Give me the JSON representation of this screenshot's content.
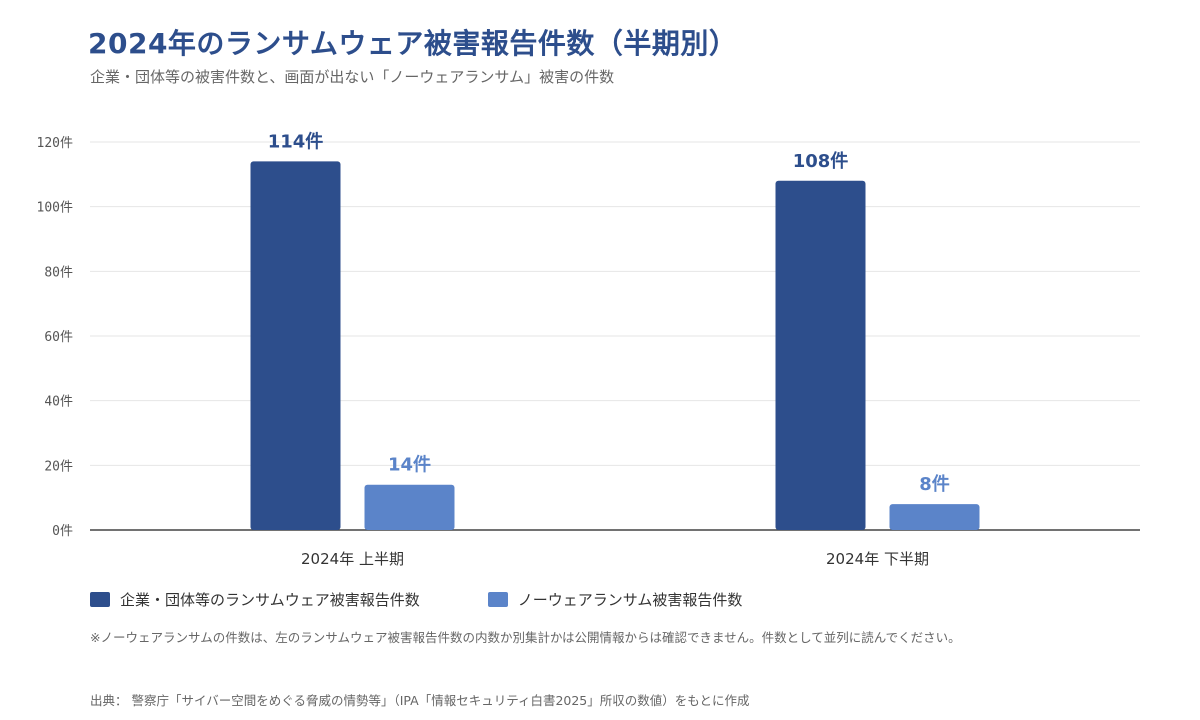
{
  "header": {
    "title": "2024年のランサムウェア被害報告件数（半期別）",
    "subtitle": "企業・団体等の被害件数と、画面が出ない「ノーウェアランサム」被害の件数"
  },
  "colors": {
    "series1": "#2d4e8c",
    "series2": "#5b84c9",
    "grid": "#e6e6e6",
    "axis": "#444444",
    "text": "#333333"
  },
  "chart_data": {
    "type": "bar",
    "categories": [
      "2024年 上半期",
      "2024年 下半期"
    ],
    "series": [
      {
        "name": "企業・団体等のランサムウェア被害報告件数",
        "values": [
          114,
          108
        ],
        "labels": [
          "114件",
          "108件"
        ]
      },
      {
        "name": "ノーウェアランサム被害報告件数",
        "values": [
          14,
          8
        ],
        "labels": [
          "14件",
          "8件"
        ]
      }
    ],
    "ylim": [
      0,
      120
    ],
    "yticks": [
      0,
      20,
      40,
      60,
      80,
      100,
      120
    ],
    "ytick_labels": [
      "0件",
      "20件",
      "40件",
      "60件",
      "80件",
      "100件",
      "120件"
    ],
    "grid": true,
    "legend_position": "bottom-left"
  },
  "legend": {
    "items": [
      {
        "label": "企業・団体等のランサムウェア被害報告件数"
      },
      {
        "label": "ノーウェアランサム被害報告件数"
      }
    ]
  },
  "footer": {
    "note": "※ノーウェアランサムの件数は、左のランサムウェア被害報告件数の内数か別集計かは公開情報からは確認できません。件数として並列に読んでください。",
    "source": "出典： 警察庁「サイバー空間をめぐる脅威の情勢等」（IPA「情報セキュリティ白書2025」所収の数値）をもとに作成"
  }
}
